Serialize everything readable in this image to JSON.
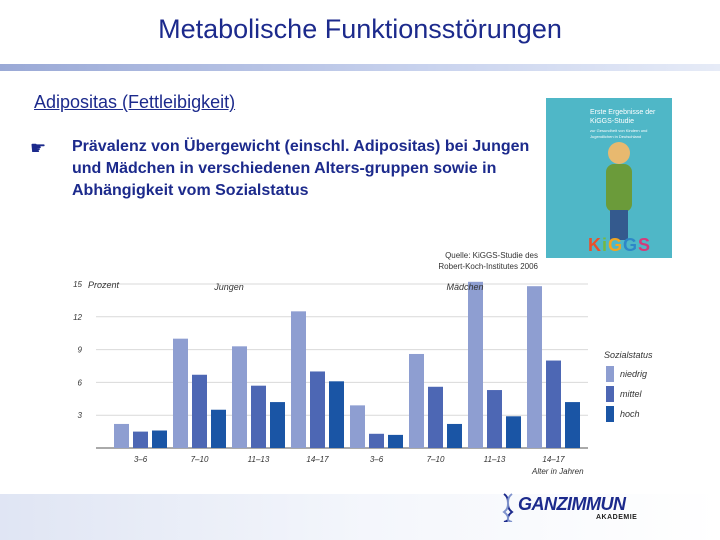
{
  "slide": {
    "title": "Metabolische Funktionsstörungen",
    "subtitle": "Adipositas (Fettleibigkeit)",
    "bullet": "Prävalenz von Übergewicht (einschl. Adipositas) bei Jungen und Mädchen in verschiedenen Alters-gruppen sowie in Abhängigkeit vom Sozialstatus",
    "source_line1": "Quelle: KiGGS-Studie des",
    "source_line2": "Robert-Koch-Institutes 2006"
  },
  "cover": {
    "title": "Erste Ergebnisse der KiGGS-Studie",
    "text": "zur Gesundheit von Kindern und Jugendlichen in Deutschland",
    "logo_letters": [
      "K",
      "i",
      "G",
      "G",
      "S"
    ]
  },
  "logo": {
    "name": "GANZIMMUN",
    "sub": "AKADEMIE"
  },
  "colors": {
    "title": "#1c2a8c",
    "niedrig": "#8e9ed1",
    "mittel": "#4d67b4",
    "hoch": "#1a55a5"
  },
  "icons": {
    "bullet": "pointing-hand-icon"
  },
  "chart_data": {
    "type": "bar",
    "ylabel": "Prozent",
    "xlabel": "Alter in Jahren",
    "ylim": [
      0,
      15
    ],
    "yticks": [
      3,
      6,
      9,
      12,
      15
    ],
    "groups": [
      "Jungen",
      "Mädchen"
    ],
    "categories": [
      "3–6",
      "7–10",
      "11–13",
      "14–17",
      "3–6",
      "7–10",
      "11–13",
      "14–17"
    ],
    "legend_title": "Sozialstatus",
    "legend_position": "right",
    "series": [
      {
        "name": "niedrig",
        "values": [
          2.2,
          10.0,
          9.3,
          12.5,
          3.9,
          8.6,
          15.2,
          14.8
        ]
      },
      {
        "name": "mittel",
        "values": [
          1.5,
          6.7,
          5.7,
          7.0,
          1.3,
          5.6,
          5.3,
          8.0
        ]
      },
      {
        "name": "hoch",
        "values": [
          1.6,
          3.5,
          4.2,
          6.1,
          1.2,
          2.2,
          2.9,
          4.2
        ]
      }
    ]
  }
}
